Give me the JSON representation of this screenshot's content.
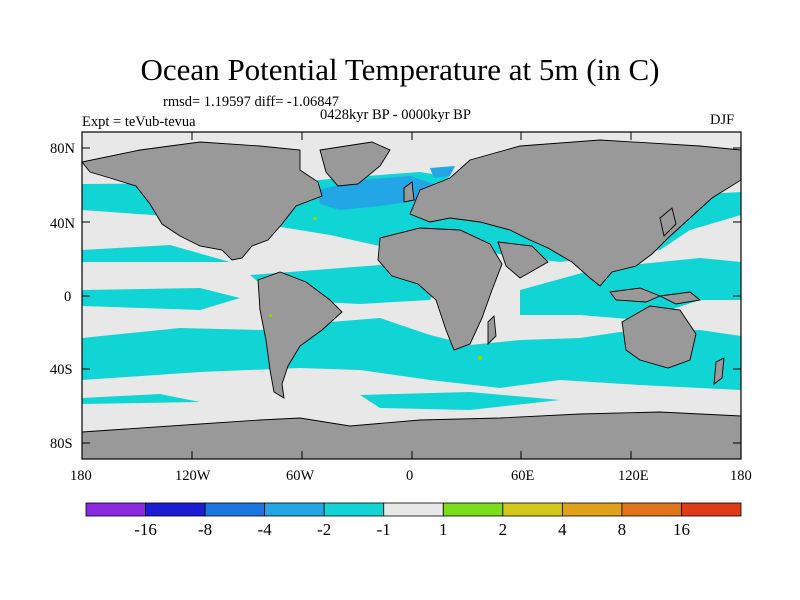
{
  "title": "Ocean Potential Temperature at 5m (in C)",
  "stats_line": "rmsd= 1.19597 diff= -1.06847",
  "period": "0428kyr BP - 0000kyr BP",
  "experiment": "Expt = teVub-tevua",
  "season": "DJF",
  "lat_ticks": [
    "80N",
    "40N",
    "0",
    "40S",
    "80S"
  ],
  "lon_ticks": [
    "180",
    "120W",
    "60W",
    "0",
    "60E",
    "120E",
    "180"
  ],
  "colorbar": {
    "labels": [
      "-16",
      "-8",
      "-4",
      "-2",
      "-1",
      "1",
      "2",
      "4",
      "8",
      "16"
    ],
    "colors": [
      "#8a2be2",
      "#1c1cd4",
      "#1a76e0",
      "#22a6e6",
      "#11d4d4",
      "#e8e8e8",
      "#7cdd1a",
      "#d2c81a",
      "#e0a018",
      "#e07418",
      "#e03a18"
    ]
  },
  "colors": {
    "land": "#999999",
    "ocean_neutral": "#e8e8e8",
    "ocean_cool": "#11d4d4",
    "ocean_cooler": "#22a6e6"
  }
}
